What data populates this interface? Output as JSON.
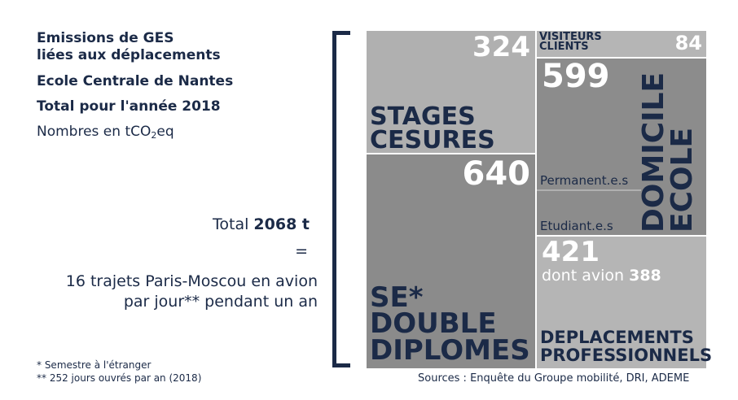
{
  "colors": {
    "navy": "#1b2a47",
    "tile_light": "#b3b3b3",
    "tile_mid": "#a7a7a7",
    "tile_dark": "#8a8a8a",
    "tile_darker": "#7f7f7f",
    "grey_edge": "#d0d0d0"
  },
  "header": {
    "line1": "Emissions de GES",
    "line2": "liées aux déplacements",
    "school": "Ecole Centrale de Nantes",
    "total_year": "Total pour l'année 2018",
    "unit_prefix": "Nombres en tCO",
    "unit_sub": "2",
    "unit_suffix": "eq"
  },
  "summary": {
    "total_prefix": "Total ",
    "total_value": "2068 t",
    "equals": "=",
    "line1": "16 trajets Paris-Moscou en avion",
    "line2": "par jour** pendant un an"
  },
  "footnotes": {
    "f1": "* Semestre à l'étranger",
    "f2": "** 252 jours ouvrés par an (2018)"
  },
  "sources": "Sources : Enquête du Groupe mobilité, DRI, ADEME",
  "chart_data": {
    "type": "treemap",
    "title": "Emissions de GES liées aux déplacements",
    "unit": "tCO2eq",
    "total": 2068,
    "items": [
      {
        "label": "STAGES CESURES",
        "value": 324,
        "value_label": "324"
      },
      {
        "label": "SE* DOUBLE DIPLOMES",
        "value": 640,
        "value_label": "640"
      },
      {
        "label": "VISITEURS CLIENTS",
        "value": 84,
        "value_label": "84"
      },
      {
        "label": "DOMICILE ECOLE",
        "value": 599,
        "value_label": "599",
        "subgroups": [
          "Permanent.e.s",
          "Etudiant.e.s"
        ]
      },
      {
        "label": "DEPLACEMENTS PROFESSIONNELS",
        "value": 421,
        "value_label": "421",
        "note_prefix": "dont avion ",
        "note_value": "388"
      }
    ]
  }
}
